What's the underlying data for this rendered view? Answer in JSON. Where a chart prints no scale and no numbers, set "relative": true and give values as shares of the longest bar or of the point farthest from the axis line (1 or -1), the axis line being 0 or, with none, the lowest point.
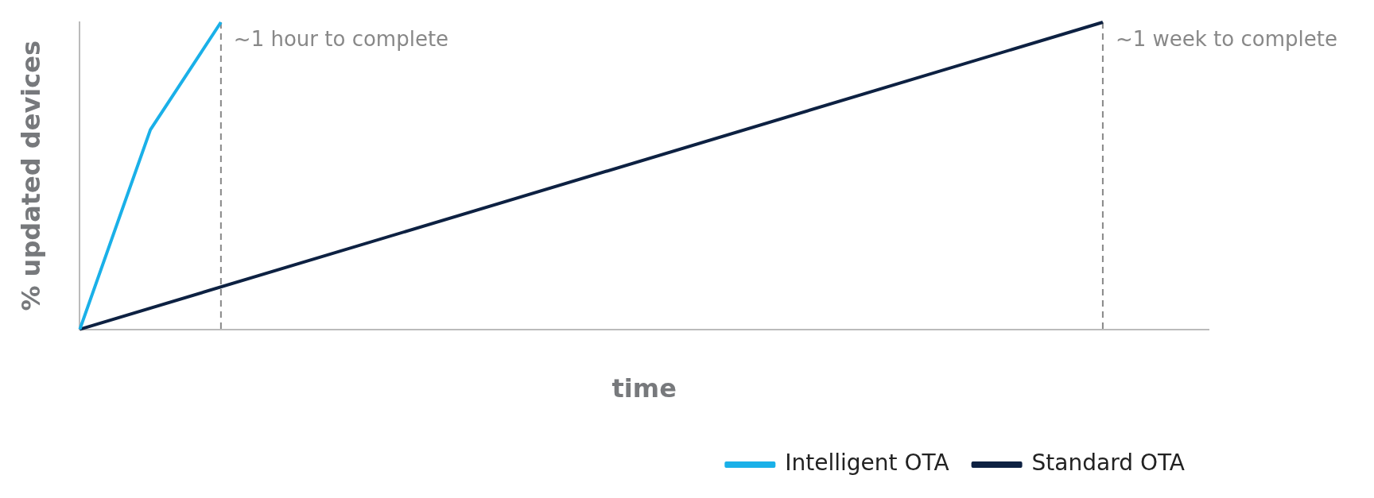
{
  "chart_data": {
    "type": "line",
    "relative": true,
    "xlabel": "time",
    "ylabel": "% updated devices",
    "legend": "bottom right",
    "grid": false,
    "marker": "none",
    "line_style": "solid",
    "categories": [
      null,
      null,
      null,
      null,
      null,
      null,
      null,
      null,
      null,
      null,
      null,
      null,
      null,
      null,
      null,
      null,
      null,
      null,
      null,
      null,
      null,
      null,
      null,
      null,
      null,
      null,
      null,
      null,
      null,
      null,
      null,
      null,
      null
    ],
    "series": [
      {
        "name": "Intelligent OTA",
        "color": "#1ab0e8",
        "values": [
          0,
          null,
          0.65,
          null,
          1,
          null,
          null,
          null,
          null,
          null,
          null,
          null,
          null,
          null,
          null,
          null,
          null,
          null,
          null,
          null,
          null,
          null,
          null,
          null,
          null,
          null,
          null,
          null,
          null,
          null,
          null,
          null,
          null
        ]
      },
      {
        "name": "Standard OTA",
        "color": "#0d2142",
        "values": [
          0,
          null,
          null,
          null,
          null,
          null,
          null,
          null,
          null,
          null,
          null,
          null,
          null,
          null,
          null,
          null,
          null,
          null,
          null,
          null,
          null,
          null,
          null,
          null,
          null,
          null,
          null,
          null,
          null,
          1,
          null,
          null,
          null
        ]
      }
    ],
    "annotations": [
      "~1 hour to complete",
      "~1 week to complete"
    ]
  }
}
